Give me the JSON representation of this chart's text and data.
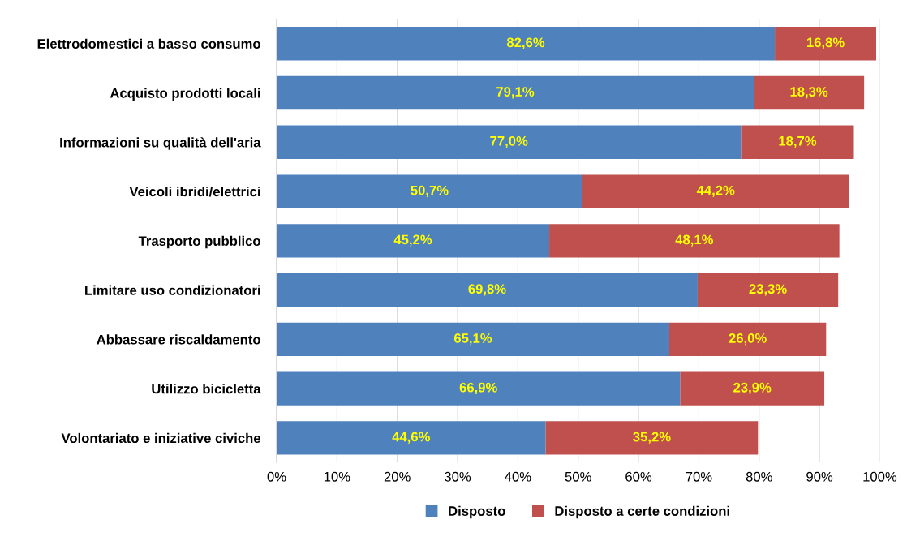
{
  "chart_data": {
    "type": "bar",
    "orientation": "horizontal",
    "stacked": true,
    "categories": [
      "Elettrodomestici a basso consumo",
      "Acquisto prodotti locali",
      "Informazioni su qualità dell'aria",
      "Veicoli ibridi/elettrici",
      "Trasporto pubblico",
      "Limitare uso condizionatori",
      "Abbassare riscaldamento",
      "Utilizzo bicicletta",
      "Volontariato e iniziative civiche"
    ],
    "series": [
      {
        "name": "Disposto",
        "color": "#4f81bd",
        "values": [
          82.6,
          79.1,
          77.0,
          50.7,
          45.2,
          69.8,
          65.1,
          66.9,
          44.6
        ],
        "value_labels": [
          "82,6%",
          "79,1%",
          "77,0%",
          "50,7%",
          "45,2%",
          "69,8%",
          "65,1%",
          "66,9%",
          "44,6%"
        ]
      },
      {
        "name": "Disposto a certe condizioni",
        "color": "#c0504d",
        "values": [
          16.8,
          18.3,
          18.7,
          44.2,
          48.1,
          23.3,
          26.0,
          23.9,
          35.2
        ],
        "value_labels": [
          "16,8%",
          "18,3%",
          "18,7%",
          "44,2%",
          "48,1%",
          "23,3%",
          "26,0%",
          "23,9%",
          "35,2%"
        ]
      }
    ],
    "xlim": [
      0,
      100
    ],
    "xticks": [
      {
        "value": 0,
        "label": "0%"
      },
      {
        "value": 10,
        "label": "10%"
      },
      {
        "value": 20,
        "label": "20%"
      },
      {
        "value": 30,
        "label": "30%"
      },
      {
        "value": 40,
        "label": "40%"
      },
      {
        "value": 50,
        "label": "50%"
      },
      {
        "value": 60,
        "label": "60%"
      },
      {
        "value": 70,
        "label": "70%"
      },
      {
        "value": 80,
        "label": "80%"
      },
      {
        "value": 90,
        "label": "90%"
      },
      {
        "value": 100,
        "label": "100%"
      }
    ],
    "grid": "x",
    "legend": "bottom"
  }
}
